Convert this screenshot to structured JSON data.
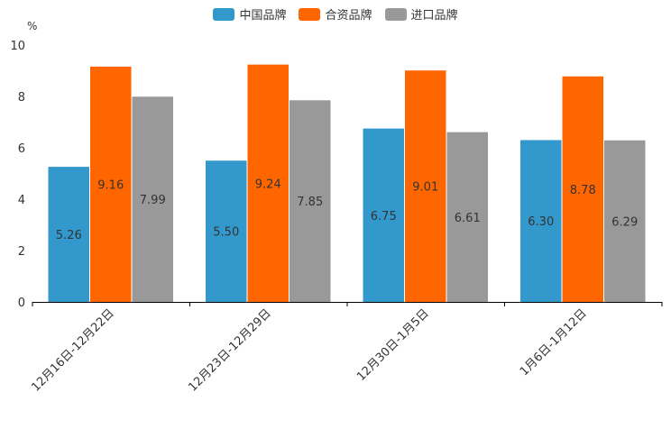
{
  "chart_data": {
    "type": "bar",
    "categories": [
      "12月16日-12月22日",
      "12月23日-12月29日",
      "12月30日-1月5日",
      "1月6日-1月12日"
    ],
    "series": [
      {
        "name": "中国品牌",
        "color": "#3399cc",
        "values": [
          5.26,
          5.5,
          6.75,
          6.3
        ],
        "labels": [
          "5.26",
          "5.50",
          "6.75",
          "6.30"
        ]
      },
      {
        "name": "合资品牌",
        "color": "#ff6600",
        "values": [
          9.16,
          9.24,
          9.01,
          8.78
        ],
        "labels": [
          "9.16",
          "9.24",
          "9.01",
          "8.78"
        ]
      },
      {
        "name": "进口品牌",
        "color": "#999999",
        "values": [
          7.99,
          7.85,
          6.61,
          6.29
        ],
        "labels": [
          "7.99",
          "7.85",
          "6.61",
          "6.29"
        ]
      }
    ],
    "yunit": "%",
    "ylim": [
      0,
      10
    ],
    "yticks": [
      "0",
      "2",
      "4",
      "6",
      "8",
      "10"
    ],
    "legend_position": "top-center",
    "grid": false
  }
}
